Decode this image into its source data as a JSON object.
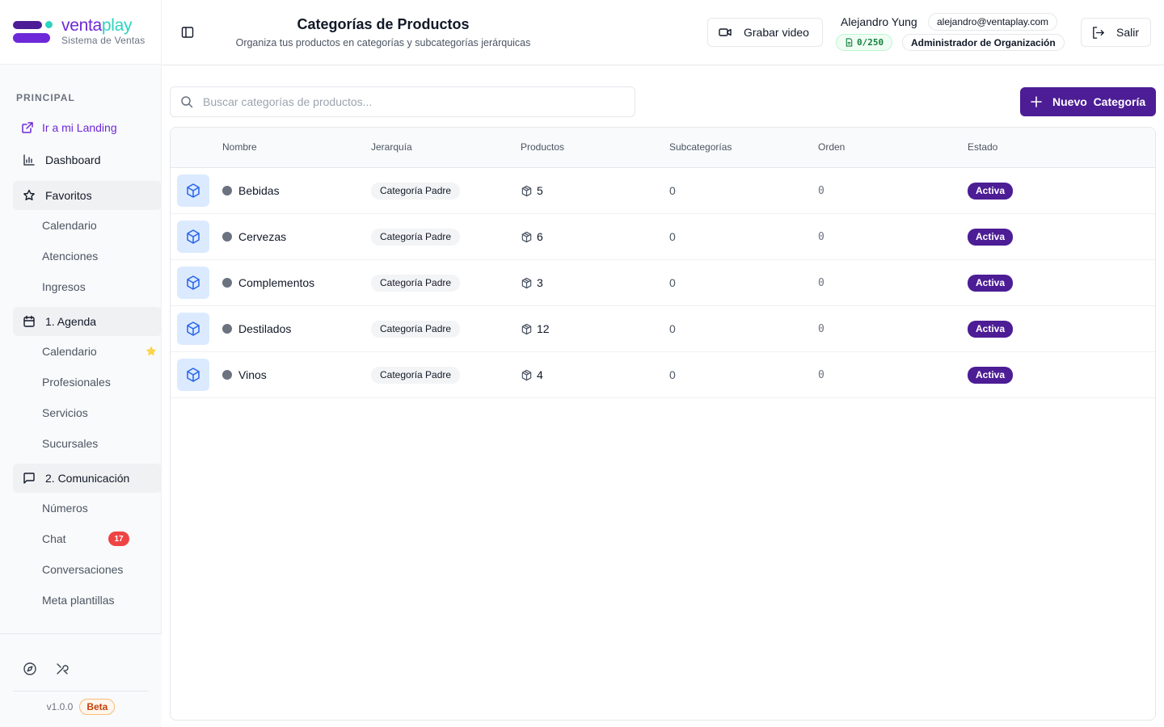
{
  "brand": {
    "name_part1": "venta",
    "name_part2": "play",
    "subtitle": "Sistema de Ventas"
  },
  "sidebar": {
    "section_label": "PRINCIPAL",
    "landing_link": "Ir a mi Landing",
    "dashboard": "Dashboard",
    "favorites": {
      "label": "Favoritos",
      "items": [
        "Calendario",
        "Atenciones",
        "Ingresos"
      ]
    },
    "agenda": {
      "label": "1. Agenda",
      "items": [
        "Calendario",
        "Profesionales",
        "Servicios",
        "Sucursales"
      ]
    },
    "comunicacion": {
      "label": "2. Comunicación",
      "items": [
        "Números",
        "Chat",
        "Conversaciones",
        "Meta plantillas"
      ],
      "chat_badge": "17"
    },
    "version": "v1.0.0",
    "beta_label": "Beta"
  },
  "header": {
    "title": "Categorías de Productos",
    "subtitle": "Organiza tus productos en categorías y subcategorías jerárquicas",
    "record_button": "Grabar video",
    "user_name": "Alejandro Yung",
    "email": "alejandro@ventaplay.com",
    "quota": "0/250",
    "role": "Administrador de Organización",
    "exit_button": "Salir"
  },
  "toolbar": {
    "search_placeholder": "Buscar categorías de productos...",
    "new_button": "Nuevo  Categoría"
  },
  "table": {
    "columns": [
      "Nombre",
      "Jerarquía",
      "Productos",
      "Subcategorías",
      "Orden",
      "Estado"
    ],
    "rows": [
      {
        "name": "Bebidas",
        "hierarchy": "Categoría Padre",
        "products": "5",
        "subcategories": "0",
        "order": "0",
        "status": "Activa"
      },
      {
        "name": "Cervezas",
        "hierarchy": "Categoría Padre",
        "products": "6",
        "subcategories": "0",
        "order": "0",
        "status": "Activa"
      },
      {
        "name": "Complementos",
        "hierarchy": "Categoría Padre",
        "products": "3",
        "subcategories": "0",
        "order": "0",
        "status": "Activa"
      },
      {
        "name": "Destilados",
        "hierarchy": "Categoría Padre",
        "products": "12",
        "subcategories": "0",
        "order": "0",
        "status": "Activa"
      },
      {
        "name": "Vinos",
        "hierarchy": "Categoría Padre",
        "products": "4",
        "subcategories": "0",
        "order": "0",
        "status": "Activa"
      }
    ]
  },
  "colors": {
    "primary": "#4c1d95",
    "brand_purple": "#6d28d9",
    "brand_teal": "#2dd4bf",
    "badge_red": "#ef4444",
    "category_icon_bg": "#dbeafe"
  }
}
